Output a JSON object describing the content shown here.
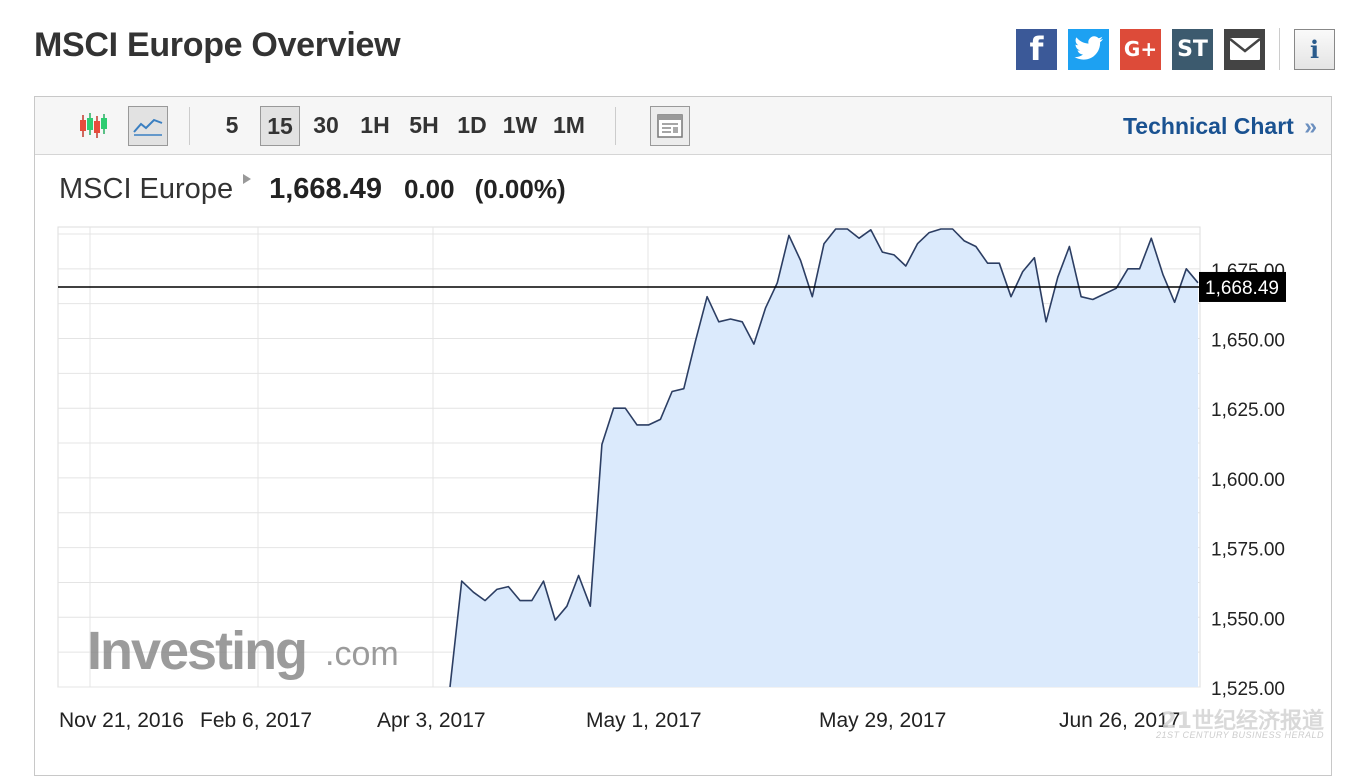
{
  "page": {
    "title": "MSCI Europe Overview"
  },
  "share": {
    "facebook": "f",
    "twitter": "t",
    "google": "G+",
    "stocktwits": "ST",
    "email_icon": "envelope-icon",
    "info": "i"
  },
  "toolbar": {
    "timeframes": [
      "5",
      "15",
      "30",
      "1H",
      "5H",
      "1D",
      "1W",
      "1M"
    ],
    "active_timeframe": "15",
    "technical_chart_label": "Technical Chart",
    "technical_chart_arrow": "»"
  },
  "quote": {
    "name": "MSCI Europe",
    "price": "1,668.49",
    "change": "0.00",
    "change_pct": "(0.00%)"
  },
  "logo": {
    "word": "Investing",
    "suffix": ".com"
  },
  "watermark": {
    "cn": "21世纪经济报道",
    "en": "21ST CENTURY BUSINESS HERALD"
  },
  "colors": {
    "line": "#2c3e63",
    "fill": "#dbeafc",
    "grid": "#e4e4e4",
    "current": "#000000",
    "link": "#1a5291"
  },
  "chart_data": {
    "type": "area",
    "ylim": [
      1525,
      1690
    ],
    "y_ticks": [
      1525,
      1550,
      1575,
      1600,
      1625,
      1650,
      1675
    ],
    "y_tick_labels": [
      "1,525.00",
      "1,550.00",
      "1,575.00",
      "1,600.00",
      "1,625.00",
      "1,650.00",
      "1,675.00"
    ],
    "x_tick_labels": [
      "Nov 21, 2016",
      "Feb 6, 2017",
      "Apr 3, 2017",
      "May 1, 2017",
      "May 29, 2017",
      "Jun 26, 2017"
    ],
    "current_value": 1668.49,
    "current_label": "1,668.49",
    "values": [
      1525,
      1563,
      1559,
      1556,
      1560,
      1561,
      1556,
      1556,
      1563,
      1549,
      1554,
      1565,
      1554,
      1612,
      1625,
      1625,
      1619,
      1619,
      1621,
      1631,
      1632,
      1649,
      1665,
      1656,
      1657,
      1656,
      1648,
      1661,
      1670,
      1687,
      1678,
      1665,
      1684,
      1690,
      1691,
      1686,
      1689,
      1681,
      1680,
      1676,
      1684,
      1688,
      1700,
      1696,
      1685,
      1683,
      1677,
      1677,
      1665,
      1674,
      1679,
      1656,
      1672,
      1683,
      1665,
      1664,
      1666,
      1668,
      1675,
      1675,
      1686,
      1673,
      1663,
      1675,
      1670
    ]
  }
}
